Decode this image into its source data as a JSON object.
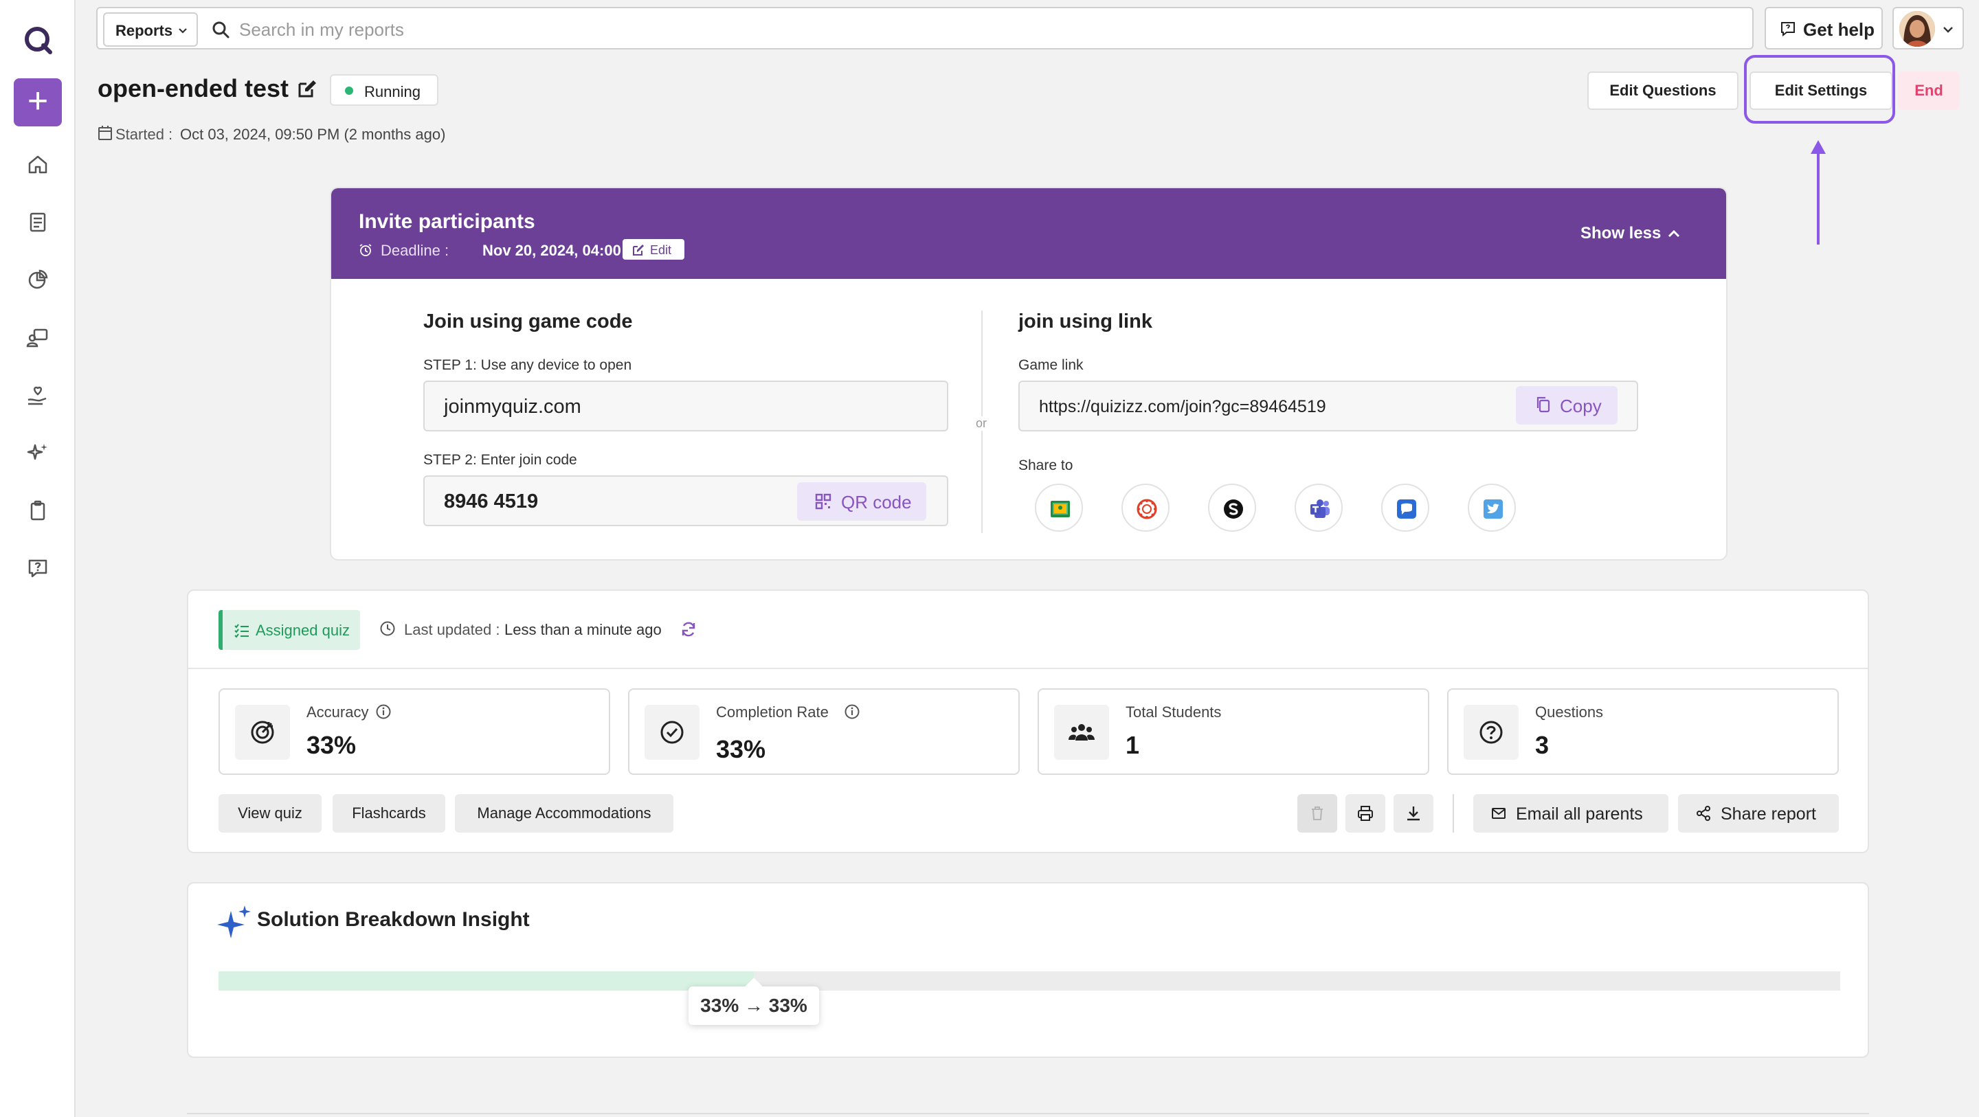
{
  "topbar": {
    "scope_label": "Reports",
    "search_placeholder": "Search in my reports",
    "help_label": "Get help"
  },
  "header": {
    "title": "open-ended test",
    "status": "Running",
    "started_label": "Started :",
    "started_value": "Oct 03, 2024, 09:50 PM (2 months ago)",
    "edit_questions_label": "Edit Questions",
    "edit_settings_label": "Edit Settings",
    "end_label": "End"
  },
  "invite": {
    "title": "Invite participants",
    "deadline_label": "Deadline :",
    "deadline_value": "Nov 20, 2024, 04:00 PM",
    "edit_label": "Edit",
    "toggle_label": "Show less",
    "game_code": {
      "title": "Join using game code",
      "step1": "STEP 1: Use any device to open",
      "site": "joinmyquiz.com",
      "step2": "STEP 2: Enter join code",
      "code": "8946 4519",
      "qr_label": "QR code"
    },
    "or_label": "or",
    "link": {
      "title": "join using link",
      "label": "Game link",
      "url": "https://quizizz.com/join?gc=89464519",
      "copy_label": "Copy",
      "share_label": "Share to",
      "share_targets": [
        "google-classroom-icon",
        "canvas-icon",
        "schoology-icon",
        "teams-icon",
        "remind-icon",
        "twitter-icon"
      ]
    }
  },
  "stats": {
    "tag": "Assigned quiz",
    "updated_label": "Last updated :",
    "updated_value": "Less than a minute ago",
    "metrics": [
      {
        "label": "Accuracy",
        "value": "33%"
      },
      {
        "label": "Completion Rate",
        "value": "33%"
      },
      {
        "label": "Total Students",
        "value": "1"
      },
      {
        "label": "Questions",
        "value": "3"
      }
    ],
    "actions": {
      "view_quiz": "View quiz",
      "flashcards": "Flashcards",
      "accommodations": "Manage Accommodations",
      "email_parents": "Email all parents",
      "share_report": "Share report"
    }
  },
  "insight": {
    "title": "Solution Breakdown Insight",
    "progress_fraction": 0.33,
    "tooltip": "33% → 33%"
  },
  "colors": {
    "brand": "#8854c0",
    "invite_header": "#6b4096",
    "running": "#2bb673",
    "end": "#e2436e",
    "highlight": "#8c58e8"
  }
}
